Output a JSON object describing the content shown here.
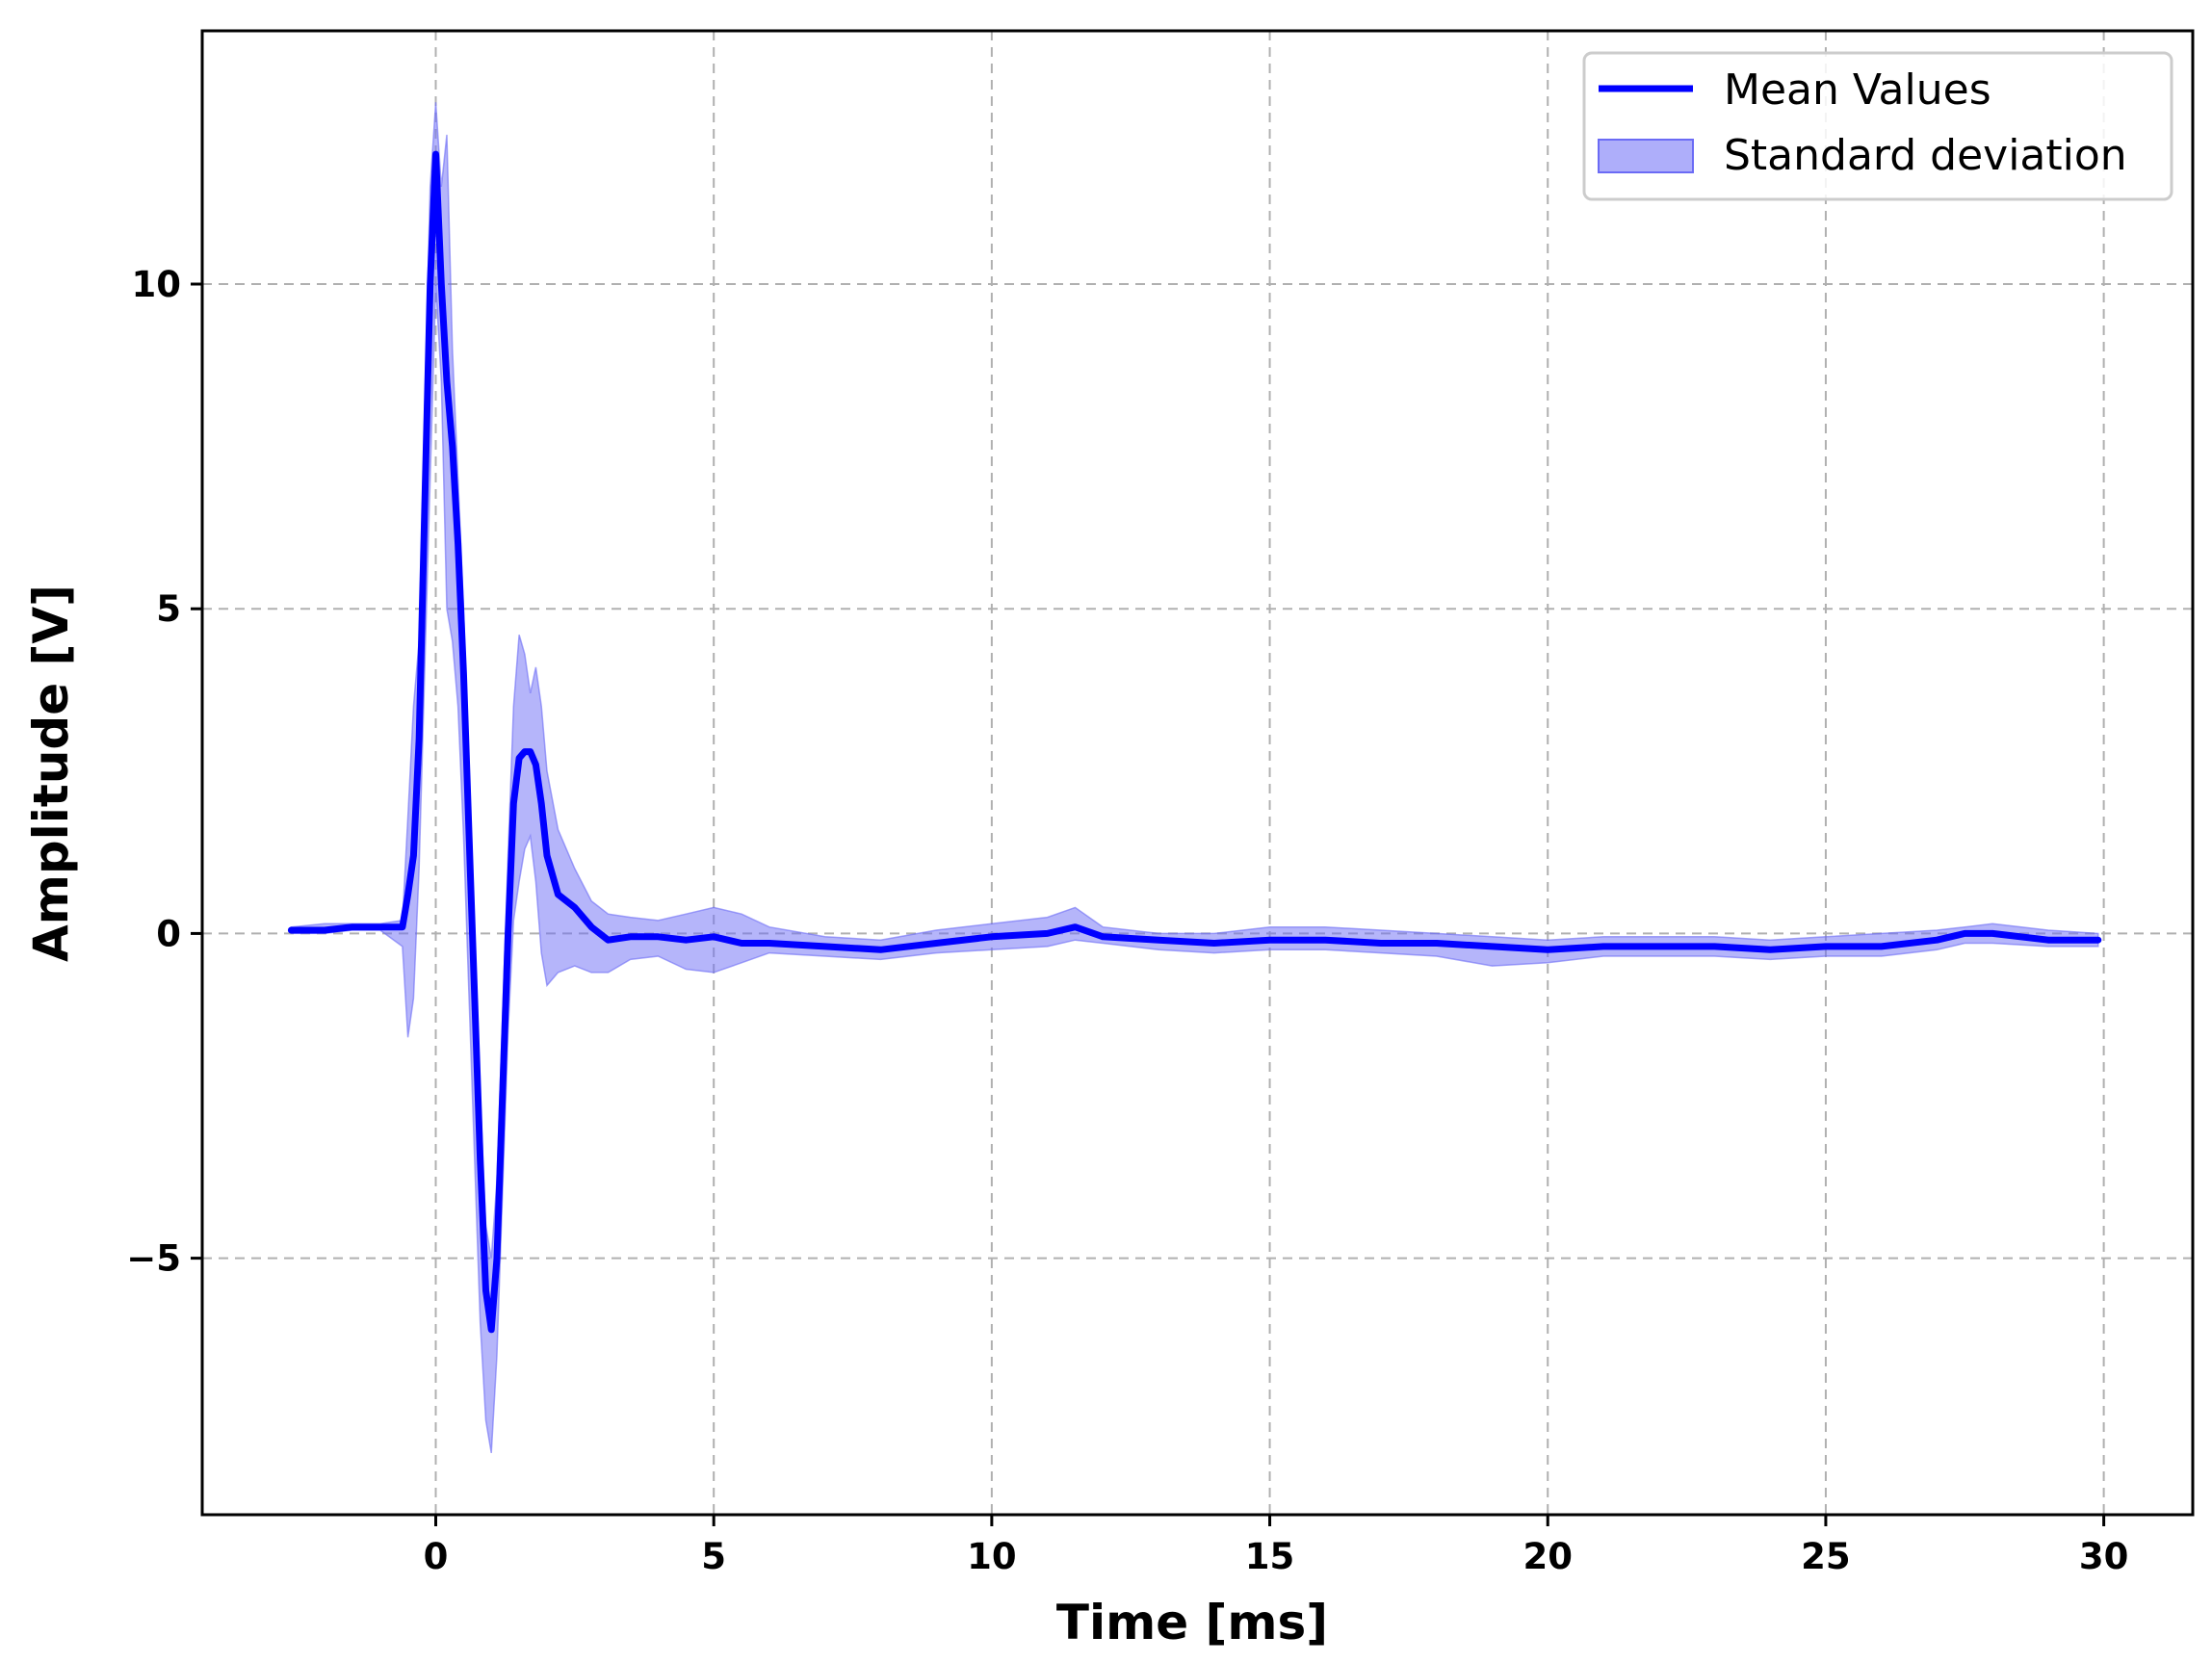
{
  "chart_data": {
    "type": "line",
    "title": "",
    "xlabel": "Time [ms]",
    "ylabel": "Amplitude [V]",
    "xlim": [
      -4.2,
      31.6
    ],
    "ylim": [
      -8.95,
      13.9
    ],
    "xticks": [
      0,
      5,
      10,
      15,
      20,
      25,
      30
    ],
    "yticks": [
      -5,
      0,
      5,
      10
    ],
    "xtick_labels": [
      "0",
      "5",
      "10",
      "15",
      "20",
      "25",
      "30"
    ],
    "ytick_labels": [
      "−5",
      "0",
      "5",
      "10"
    ],
    "grid": true,
    "legend_position": "top-right",
    "colors": {
      "mean_line": "#0000ff",
      "std_band": "#6b6bf5"
    },
    "series": [
      {
        "name": "Mean Values",
        "kind": "line",
        "x": [
          -2.6,
          -2.0,
          -1.5,
          -1.0,
          -0.6,
          -0.5,
          -0.4,
          -0.3,
          -0.2,
          -0.1,
          0.0,
          0.1,
          0.2,
          0.3,
          0.4,
          0.5,
          0.6,
          0.7,
          0.8,
          0.9,
          1.0,
          1.1,
          1.2,
          1.3,
          1.4,
          1.5,
          1.6,
          1.7,
          1.8,
          1.9,
          2.0,
          2.2,
          2.5,
          2.8,
          3.1,
          3.5,
          4.0,
          4.5,
          5.0,
          5.5,
          6.0,
          7.0,
          8.0,
          9.0,
          10.0,
          11.0,
          11.5,
          12.0,
          13.0,
          14.0,
          15.0,
          16.0,
          17.0,
          18.0,
          19.0,
          20.0,
          21.0,
          22.0,
          23.0,
          24.0,
          25.0,
          26.0,
          27.0,
          27.5,
          28.0,
          29.0,
          29.9
        ],
        "y": [
          0.05,
          0.05,
          0.1,
          0.1,
          0.1,
          0.6,
          1.2,
          3.0,
          6.5,
          10.0,
          12.0,
          10.0,
          8.5,
          7.5,
          6.0,
          4.0,
          1.5,
          -1.0,
          -3.5,
          -5.5,
          -6.1,
          -5.0,
          -2.5,
          0.0,
          2.0,
          2.7,
          2.8,
          2.8,
          2.6,
          2.0,
          1.2,
          0.6,
          0.4,
          0.1,
          -0.1,
          -0.05,
          -0.05,
          -0.1,
          -0.05,
          -0.15,
          -0.15,
          -0.2,
          -0.25,
          -0.15,
          -0.05,
          0.0,
          0.1,
          -0.05,
          -0.1,
          -0.15,
          -0.1,
          -0.1,
          -0.15,
          -0.15,
          -0.2,
          -0.25,
          -0.2,
          -0.2,
          -0.2,
          -0.25,
          -0.2,
          -0.2,
          -0.1,
          0.0,
          0.0,
          -0.1,
          -0.1
        ]
      },
      {
        "name": "Standard deviation",
        "kind": "band",
        "x": [
          -2.6,
          -2.0,
          -1.5,
          -1.0,
          -0.6,
          -0.5,
          -0.4,
          -0.3,
          -0.2,
          -0.1,
          0.0,
          0.1,
          0.2,
          0.3,
          0.4,
          0.5,
          0.6,
          0.7,
          0.8,
          0.9,
          1.0,
          1.1,
          1.2,
          1.3,
          1.4,
          1.5,
          1.6,
          1.7,
          1.8,
          1.9,
          2.0,
          2.2,
          2.5,
          2.8,
          3.1,
          3.5,
          4.0,
          4.5,
          5.0,
          5.5,
          6.0,
          7.0,
          8.0,
          9.0,
          10.0,
          11.0,
          11.5,
          12.0,
          13.0,
          14.0,
          15.0,
          16.0,
          17.0,
          18.0,
          19.0,
          20.0,
          21.0,
          22.0,
          23.0,
          24.0,
          25.0,
          26.0,
          27.0,
          27.5,
          28.0,
          29.0,
          29.9
        ],
        "upper": [
          0.1,
          0.15,
          0.15,
          0.15,
          0.2,
          1.8,
          3.5,
          4.5,
          8.0,
          11.5,
          12.8,
          11.5,
          12.3,
          9.0,
          7.0,
          5.0,
          2.2,
          -0.3,
          -2.5,
          -4.5,
          -5.0,
          -3.8,
          -1.3,
          1.2,
          3.5,
          4.6,
          4.3,
          3.7,
          4.1,
          3.5,
          2.5,
          1.6,
          1.0,
          0.5,
          0.3,
          0.25,
          0.2,
          0.3,
          0.4,
          0.3,
          0.1,
          -0.05,
          -0.1,
          0.05,
          0.15,
          0.25,
          0.4,
          0.1,
          0.0,
          0.0,
          0.1,
          0.1,
          0.05,
          0.0,
          -0.05,
          -0.1,
          -0.05,
          -0.05,
          -0.05,
          -0.1,
          -0.05,
          0.0,
          0.05,
          0.1,
          0.15,
          0.05,
          0.0
        ],
        "lower": [
          0.0,
          0.0,
          0.05,
          0.05,
          -0.2,
          -1.6,
          -1.0,
          1.0,
          4.0,
          7.0,
          10.0,
          8.5,
          5.0,
          4.5,
          3.5,
          1.5,
          -1.0,
          -3.5,
          -6.0,
          -7.5,
          -8.0,
          -6.5,
          -4.0,
          -1.5,
          0.2,
          0.8,
          1.3,
          1.5,
          0.8,
          -0.3,
          -0.8,
          -0.6,
          -0.5,
          -0.6,
          -0.6,
          -0.4,
          -0.35,
          -0.55,
          -0.6,
          -0.45,
          -0.3,
          -0.35,
          -0.4,
          -0.3,
          -0.25,
          -0.2,
          -0.1,
          -0.15,
          -0.25,
          -0.3,
          -0.25,
          -0.25,
          -0.3,
          -0.35,
          -0.5,
          -0.45,
          -0.35,
          -0.35,
          -0.35,
          -0.4,
          -0.35,
          -0.35,
          -0.25,
          -0.15,
          -0.15,
          -0.2,
          -0.2
        ]
      }
    ]
  }
}
